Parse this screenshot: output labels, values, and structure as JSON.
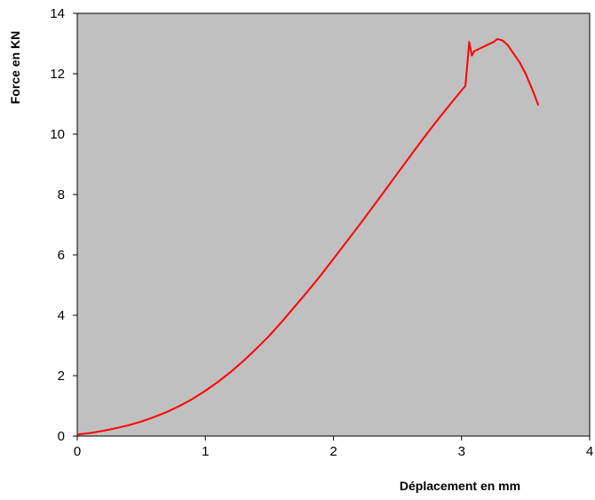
{
  "chart_data": {
    "type": "line",
    "title": "",
    "xlabel": "Déplacement en mm",
    "ylabel": "Force en KN",
    "xlim": [
      0,
      4
    ],
    "ylim": [
      0,
      14
    ],
    "x_ticks": [
      0,
      1,
      2,
      3,
      4
    ],
    "y_ticks": [
      0,
      2,
      4,
      6,
      8,
      10,
      12,
      14
    ],
    "grid": false,
    "legend": "none",
    "plot_background": "#c0c0c0",
    "line_color": "#ff0000",
    "series": [
      {
        "x": [
          0,
          0.1,
          0.2,
          0.3,
          0.4,
          0.5,
          0.6,
          0.7,
          0.8,
          0.9,
          1.0,
          1.1,
          1.2,
          1.3,
          1.4,
          1.5,
          1.6,
          1.7,
          1.8,
          1.9,
          2.0,
          2.1,
          2.2,
          2.3,
          2.4,
          2.5,
          2.6,
          2.7,
          2.8,
          2.9,
          3.0,
          3.03,
          3.06,
          3.08,
          3.1,
          3.15,
          3.2,
          3.25,
          3.28,
          3.32,
          3.36,
          3.4,
          3.45,
          3.5,
          3.55,
          3.6
        ],
        "y": [
          0.05,
          0.1,
          0.17,
          0.26,
          0.36,
          0.48,
          0.63,
          0.8,
          1.0,
          1.23,
          1.5,
          1.8,
          2.13,
          2.5,
          2.9,
          3.33,
          3.8,
          4.3,
          4.8,
          5.32,
          5.87,
          6.42,
          6.98,
          7.55,
          8.12,
          8.7,
          9.28,
          9.85,
          10.4,
          10.93,
          11.45,
          11.6,
          13.05,
          12.6,
          12.75,
          12.85,
          12.95,
          13.05,
          13.15,
          13.1,
          12.95,
          12.7,
          12.4,
          12.0,
          11.5,
          10.95
        ]
      }
    ]
  }
}
